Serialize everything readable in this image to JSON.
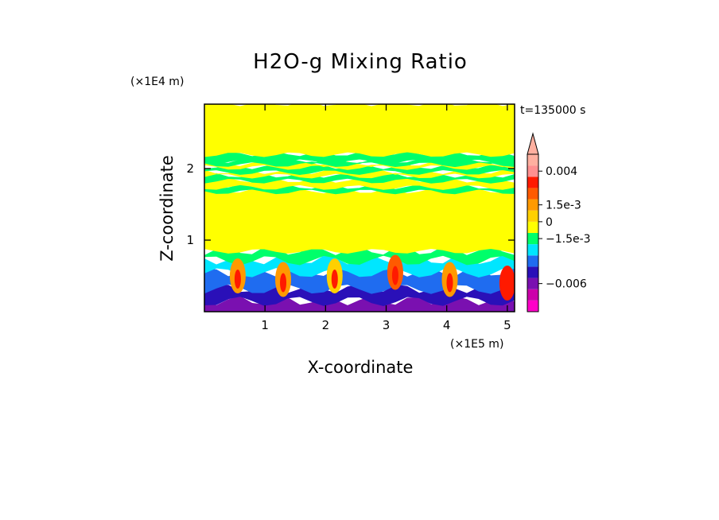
{
  "chart_data": {
    "type": "heatmap",
    "title": "H2O-g Mixing Ratio",
    "xlabel": "X-coordinate",
    "ylabel": "Z-coordinate",
    "x_scale_label": "(×1E5 m)",
    "y_scale_label": "(×1E4 m)",
    "time_label": "t=135000 s",
    "xlim": [
      0,
      5.12
    ],
    "ylim": [
      0,
      2.9
    ],
    "x_ticks": [
      1,
      2,
      3,
      4,
      5
    ],
    "y_ticks": [
      1,
      2
    ],
    "colorbar": {
      "levels": [
        {
          "color": "#ff00c8"
        },
        {
          "color": "#cc00aa"
        },
        {
          "color": "#7a10b0"
        },
        {
          "color": "#2a10b8"
        },
        {
          "color": "#1f6cf0"
        },
        {
          "color": "#00e6ff"
        },
        {
          "color": "#00ff6a"
        },
        {
          "color": "#ffff00"
        },
        {
          "color": "#ffd000"
        },
        {
          "color": "#ff9a00"
        },
        {
          "color": "#ff5a00"
        },
        {
          "color": "#ff1a00"
        },
        {
          "color": "#ff9090"
        },
        {
          "color": "#ffb0a0"
        }
      ],
      "labels": [
        {
          "text": "0.004",
          "level": 12.5
        },
        {
          "text": "1.5e-3",
          "level": 9.5
        },
        {
          "text": "0",
          "level": 8
        },
        {
          "text": "−1.5e-3",
          "level": 6.5
        },
        {
          "text": "−0.006",
          "level": 2.5
        }
      ],
      "extend": "max"
    },
    "field": {
      "bands": [
        {
          "z_top": 0.15,
          "color": "#7a10b0"
        },
        {
          "z_top": 0.32,
          "color": "#2a10b8"
        },
        {
          "z_top": 0.55,
          "color": "#1f6cf0"
        },
        {
          "z_top": 0.72,
          "color": "#00e6ff"
        },
        {
          "z_top": 0.85,
          "color": "#00ff6a"
        },
        {
          "z_top": 1.68,
          "color": "#ffff00"
        },
        {
          "z_top": 1.74,
          "color": "#00ff6a"
        },
        {
          "z_top": 1.83,
          "color": "#ffff00"
        },
        {
          "z_top": 1.9,
          "color": "#00ff6a"
        },
        {
          "z_top": 1.95,
          "color": "#ffff00"
        },
        {
          "z_top": 2.02,
          "color": "#00ff6a"
        },
        {
          "z_top": 2.06,
          "color": "#ffff00"
        },
        {
          "z_top": 2.1,
          "color": "#00ff6a"
        },
        {
          "z_top": 2.2,
          "color": "#00ff6a"
        },
        {
          "z_top": 2.9,
          "color": "#ffff00"
        }
      ],
      "plumes": [
        {
          "x": 0.55,
          "z": 0.5,
          "color": "#ff9a00"
        },
        {
          "x": 1.3,
          "z": 0.45,
          "color": "#ff9a00"
        },
        {
          "x": 2.15,
          "z": 0.5,
          "color": "#ffd000"
        },
        {
          "x": 3.15,
          "z": 0.55,
          "color": "#ff5a00"
        },
        {
          "x": 4.05,
          "z": 0.45,
          "color": "#ff9a00"
        },
        {
          "x": 5.0,
          "z": 0.4,
          "color": "#ff1a00"
        }
      ]
    }
  }
}
